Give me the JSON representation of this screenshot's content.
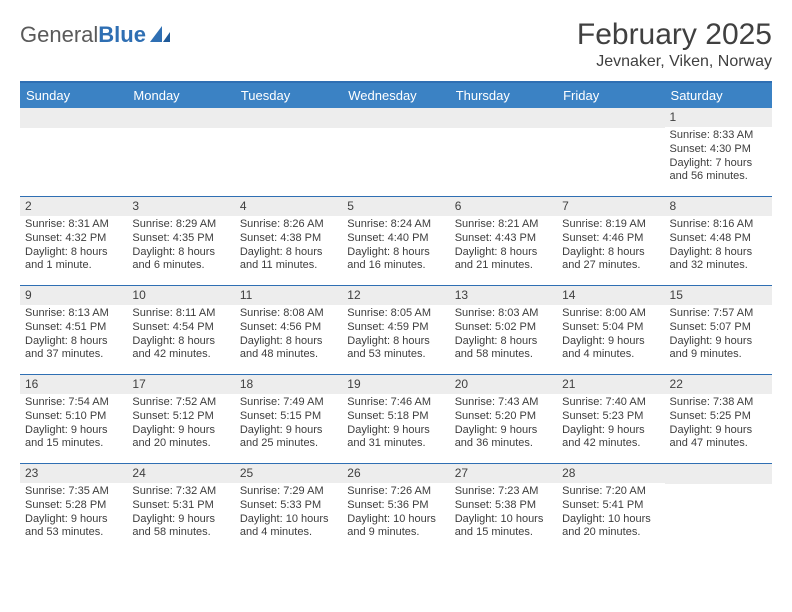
{
  "logo": {
    "word1": "General",
    "word2": "Blue"
  },
  "title": {
    "month": "February 2025",
    "location": "Jevnaker, Viken, Norway"
  },
  "dow": [
    "Sunday",
    "Monday",
    "Tuesday",
    "Wednesday",
    "Thursday",
    "Friday",
    "Saturday"
  ],
  "colors": {
    "headerBar": "#3b82c4",
    "rowDivider": "#2f6fb3",
    "dayBar": "#ededed",
    "text": "#3d3d3d"
  },
  "weeks": [
    [
      {
        "n": "",
        "lines": []
      },
      {
        "n": "",
        "lines": []
      },
      {
        "n": "",
        "lines": []
      },
      {
        "n": "",
        "lines": []
      },
      {
        "n": "",
        "lines": []
      },
      {
        "n": "",
        "lines": []
      },
      {
        "n": "1",
        "lines": [
          "Sunrise: 8:33 AM",
          "Sunset: 4:30 PM",
          "Daylight: 7 hours",
          "and 56 minutes."
        ]
      }
    ],
    [
      {
        "n": "2",
        "lines": [
          "Sunrise: 8:31 AM",
          "Sunset: 4:32 PM",
          "Daylight: 8 hours",
          "and 1 minute."
        ]
      },
      {
        "n": "3",
        "lines": [
          "Sunrise: 8:29 AM",
          "Sunset: 4:35 PM",
          "Daylight: 8 hours",
          "and 6 minutes."
        ]
      },
      {
        "n": "4",
        "lines": [
          "Sunrise: 8:26 AM",
          "Sunset: 4:38 PM",
          "Daylight: 8 hours",
          "and 11 minutes."
        ]
      },
      {
        "n": "5",
        "lines": [
          "Sunrise: 8:24 AM",
          "Sunset: 4:40 PM",
          "Daylight: 8 hours",
          "and 16 minutes."
        ]
      },
      {
        "n": "6",
        "lines": [
          "Sunrise: 8:21 AM",
          "Sunset: 4:43 PM",
          "Daylight: 8 hours",
          "and 21 minutes."
        ]
      },
      {
        "n": "7",
        "lines": [
          "Sunrise: 8:19 AM",
          "Sunset: 4:46 PM",
          "Daylight: 8 hours",
          "and 27 minutes."
        ]
      },
      {
        "n": "8",
        "lines": [
          "Sunrise: 8:16 AM",
          "Sunset: 4:48 PM",
          "Daylight: 8 hours",
          "and 32 minutes."
        ]
      }
    ],
    [
      {
        "n": "9",
        "lines": [
          "Sunrise: 8:13 AM",
          "Sunset: 4:51 PM",
          "Daylight: 8 hours",
          "and 37 minutes."
        ]
      },
      {
        "n": "10",
        "lines": [
          "Sunrise: 8:11 AM",
          "Sunset: 4:54 PM",
          "Daylight: 8 hours",
          "and 42 minutes."
        ]
      },
      {
        "n": "11",
        "lines": [
          "Sunrise: 8:08 AM",
          "Sunset: 4:56 PM",
          "Daylight: 8 hours",
          "and 48 minutes."
        ]
      },
      {
        "n": "12",
        "lines": [
          "Sunrise: 8:05 AM",
          "Sunset: 4:59 PM",
          "Daylight: 8 hours",
          "and 53 minutes."
        ]
      },
      {
        "n": "13",
        "lines": [
          "Sunrise: 8:03 AM",
          "Sunset: 5:02 PM",
          "Daylight: 8 hours",
          "and 58 minutes."
        ]
      },
      {
        "n": "14",
        "lines": [
          "Sunrise: 8:00 AM",
          "Sunset: 5:04 PM",
          "Daylight: 9 hours",
          "and 4 minutes."
        ]
      },
      {
        "n": "15",
        "lines": [
          "Sunrise: 7:57 AM",
          "Sunset: 5:07 PM",
          "Daylight: 9 hours",
          "and 9 minutes."
        ]
      }
    ],
    [
      {
        "n": "16",
        "lines": [
          "Sunrise: 7:54 AM",
          "Sunset: 5:10 PM",
          "Daylight: 9 hours",
          "and 15 minutes."
        ]
      },
      {
        "n": "17",
        "lines": [
          "Sunrise: 7:52 AM",
          "Sunset: 5:12 PM",
          "Daylight: 9 hours",
          "and 20 minutes."
        ]
      },
      {
        "n": "18",
        "lines": [
          "Sunrise: 7:49 AM",
          "Sunset: 5:15 PM",
          "Daylight: 9 hours",
          "and 25 minutes."
        ]
      },
      {
        "n": "19",
        "lines": [
          "Sunrise: 7:46 AM",
          "Sunset: 5:18 PM",
          "Daylight: 9 hours",
          "and 31 minutes."
        ]
      },
      {
        "n": "20",
        "lines": [
          "Sunrise: 7:43 AM",
          "Sunset: 5:20 PM",
          "Daylight: 9 hours",
          "and 36 minutes."
        ]
      },
      {
        "n": "21",
        "lines": [
          "Sunrise: 7:40 AM",
          "Sunset: 5:23 PM",
          "Daylight: 9 hours",
          "and 42 minutes."
        ]
      },
      {
        "n": "22",
        "lines": [
          "Sunrise: 7:38 AM",
          "Sunset: 5:25 PM",
          "Daylight: 9 hours",
          "and 47 minutes."
        ]
      }
    ],
    [
      {
        "n": "23",
        "lines": [
          "Sunrise: 7:35 AM",
          "Sunset: 5:28 PM",
          "Daylight: 9 hours",
          "and 53 minutes."
        ]
      },
      {
        "n": "24",
        "lines": [
          "Sunrise: 7:32 AM",
          "Sunset: 5:31 PM",
          "Daylight: 9 hours",
          "and 58 minutes."
        ]
      },
      {
        "n": "25",
        "lines": [
          "Sunrise: 7:29 AM",
          "Sunset: 5:33 PM",
          "Daylight: 10 hours",
          "and 4 minutes."
        ]
      },
      {
        "n": "26",
        "lines": [
          "Sunrise: 7:26 AM",
          "Sunset: 5:36 PM",
          "Daylight: 10 hours",
          "and 9 minutes."
        ]
      },
      {
        "n": "27",
        "lines": [
          "Sunrise: 7:23 AM",
          "Sunset: 5:38 PM",
          "Daylight: 10 hours",
          "and 15 minutes."
        ]
      },
      {
        "n": "28",
        "lines": [
          "Sunrise: 7:20 AM",
          "Sunset: 5:41 PM",
          "Daylight: 10 hours",
          "and 20 minutes."
        ]
      },
      {
        "n": "",
        "lines": []
      }
    ]
  ]
}
